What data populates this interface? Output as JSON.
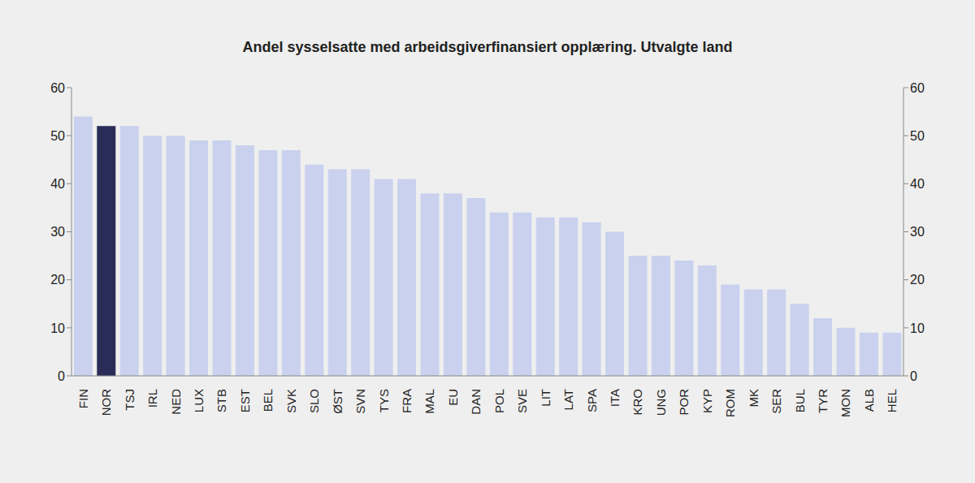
{
  "chart_data": {
    "type": "bar",
    "title": "Andel sysselsatte med arbeidsgiverfinansiert opplæring. Utvalgte land",
    "categories": [
      "FIN",
      "NOR",
      "TSJ",
      "IRL",
      "NED",
      "LUX",
      "STB",
      "EST",
      "BEL",
      "SVK",
      "SLO",
      "ØST",
      "SVN",
      "TYS",
      "FRA",
      "MAL",
      "EU",
      "DAN",
      "POL",
      "SVE",
      "LIT",
      "LAT",
      "SPA",
      "ITA",
      "KRO",
      "UNG",
      "POR",
      "KYP",
      "ROM",
      "MK",
      "SER",
      "BUL",
      "TYR",
      "MON",
      "ALB",
      "HEL"
    ],
    "values": [
      54,
      52,
      52,
      50,
      50,
      49,
      49,
      48,
      47,
      47,
      44,
      43,
      43,
      41,
      41,
      38,
      38,
      37,
      34,
      34,
      33,
      33,
      32,
      30,
      25,
      25,
      24,
      23,
      19,
      18,
      18,
      15,
      12,
      10,
      9,
      9
    ],
    "colors": [
      "#c9d1ee",
      "#2a2c58",
      "#c9d1ee",
      "#c9d1ee",
      "#c9d1ee",
      "#c9d1ee",
      "#c9d1ee",
      "#c9d1ee",
      "#c9d1ee",
      "#c9d1ee",
      "#c9d1ee",
      "#c9d1ee",
      "#c9d1ee",
      "#c9d1ee",
      "#c9d1ee",
      "#c9d1ee",
      "#c9d1ee",
      "#c9d1ee",
      "#c9d1ee",
      "#c9d1ee",
      "#c9d1ee",
      "#c9d1ee",
      "#c9d1ee",
      "#c9d1ee",
      "#c9d1ee",
      "#c9d1ee",
      "#c9d1ee",
      "#c9d1ee",
      "#c9d1ee",
      "#c9d1ee",
      "#c9d1ee",
      "#c9d1ee",
      "#c9d1ee",
      "#c9d1ee",
      "#c9d1ee",
      "#c9d1ee"
    ],
    "ylim": [
      0,
      60
    ],
    "yticks": [
      0,
      10,
      20,
      30,
      40,
      50,
      60
    ],
    "grid": false
  }
}
